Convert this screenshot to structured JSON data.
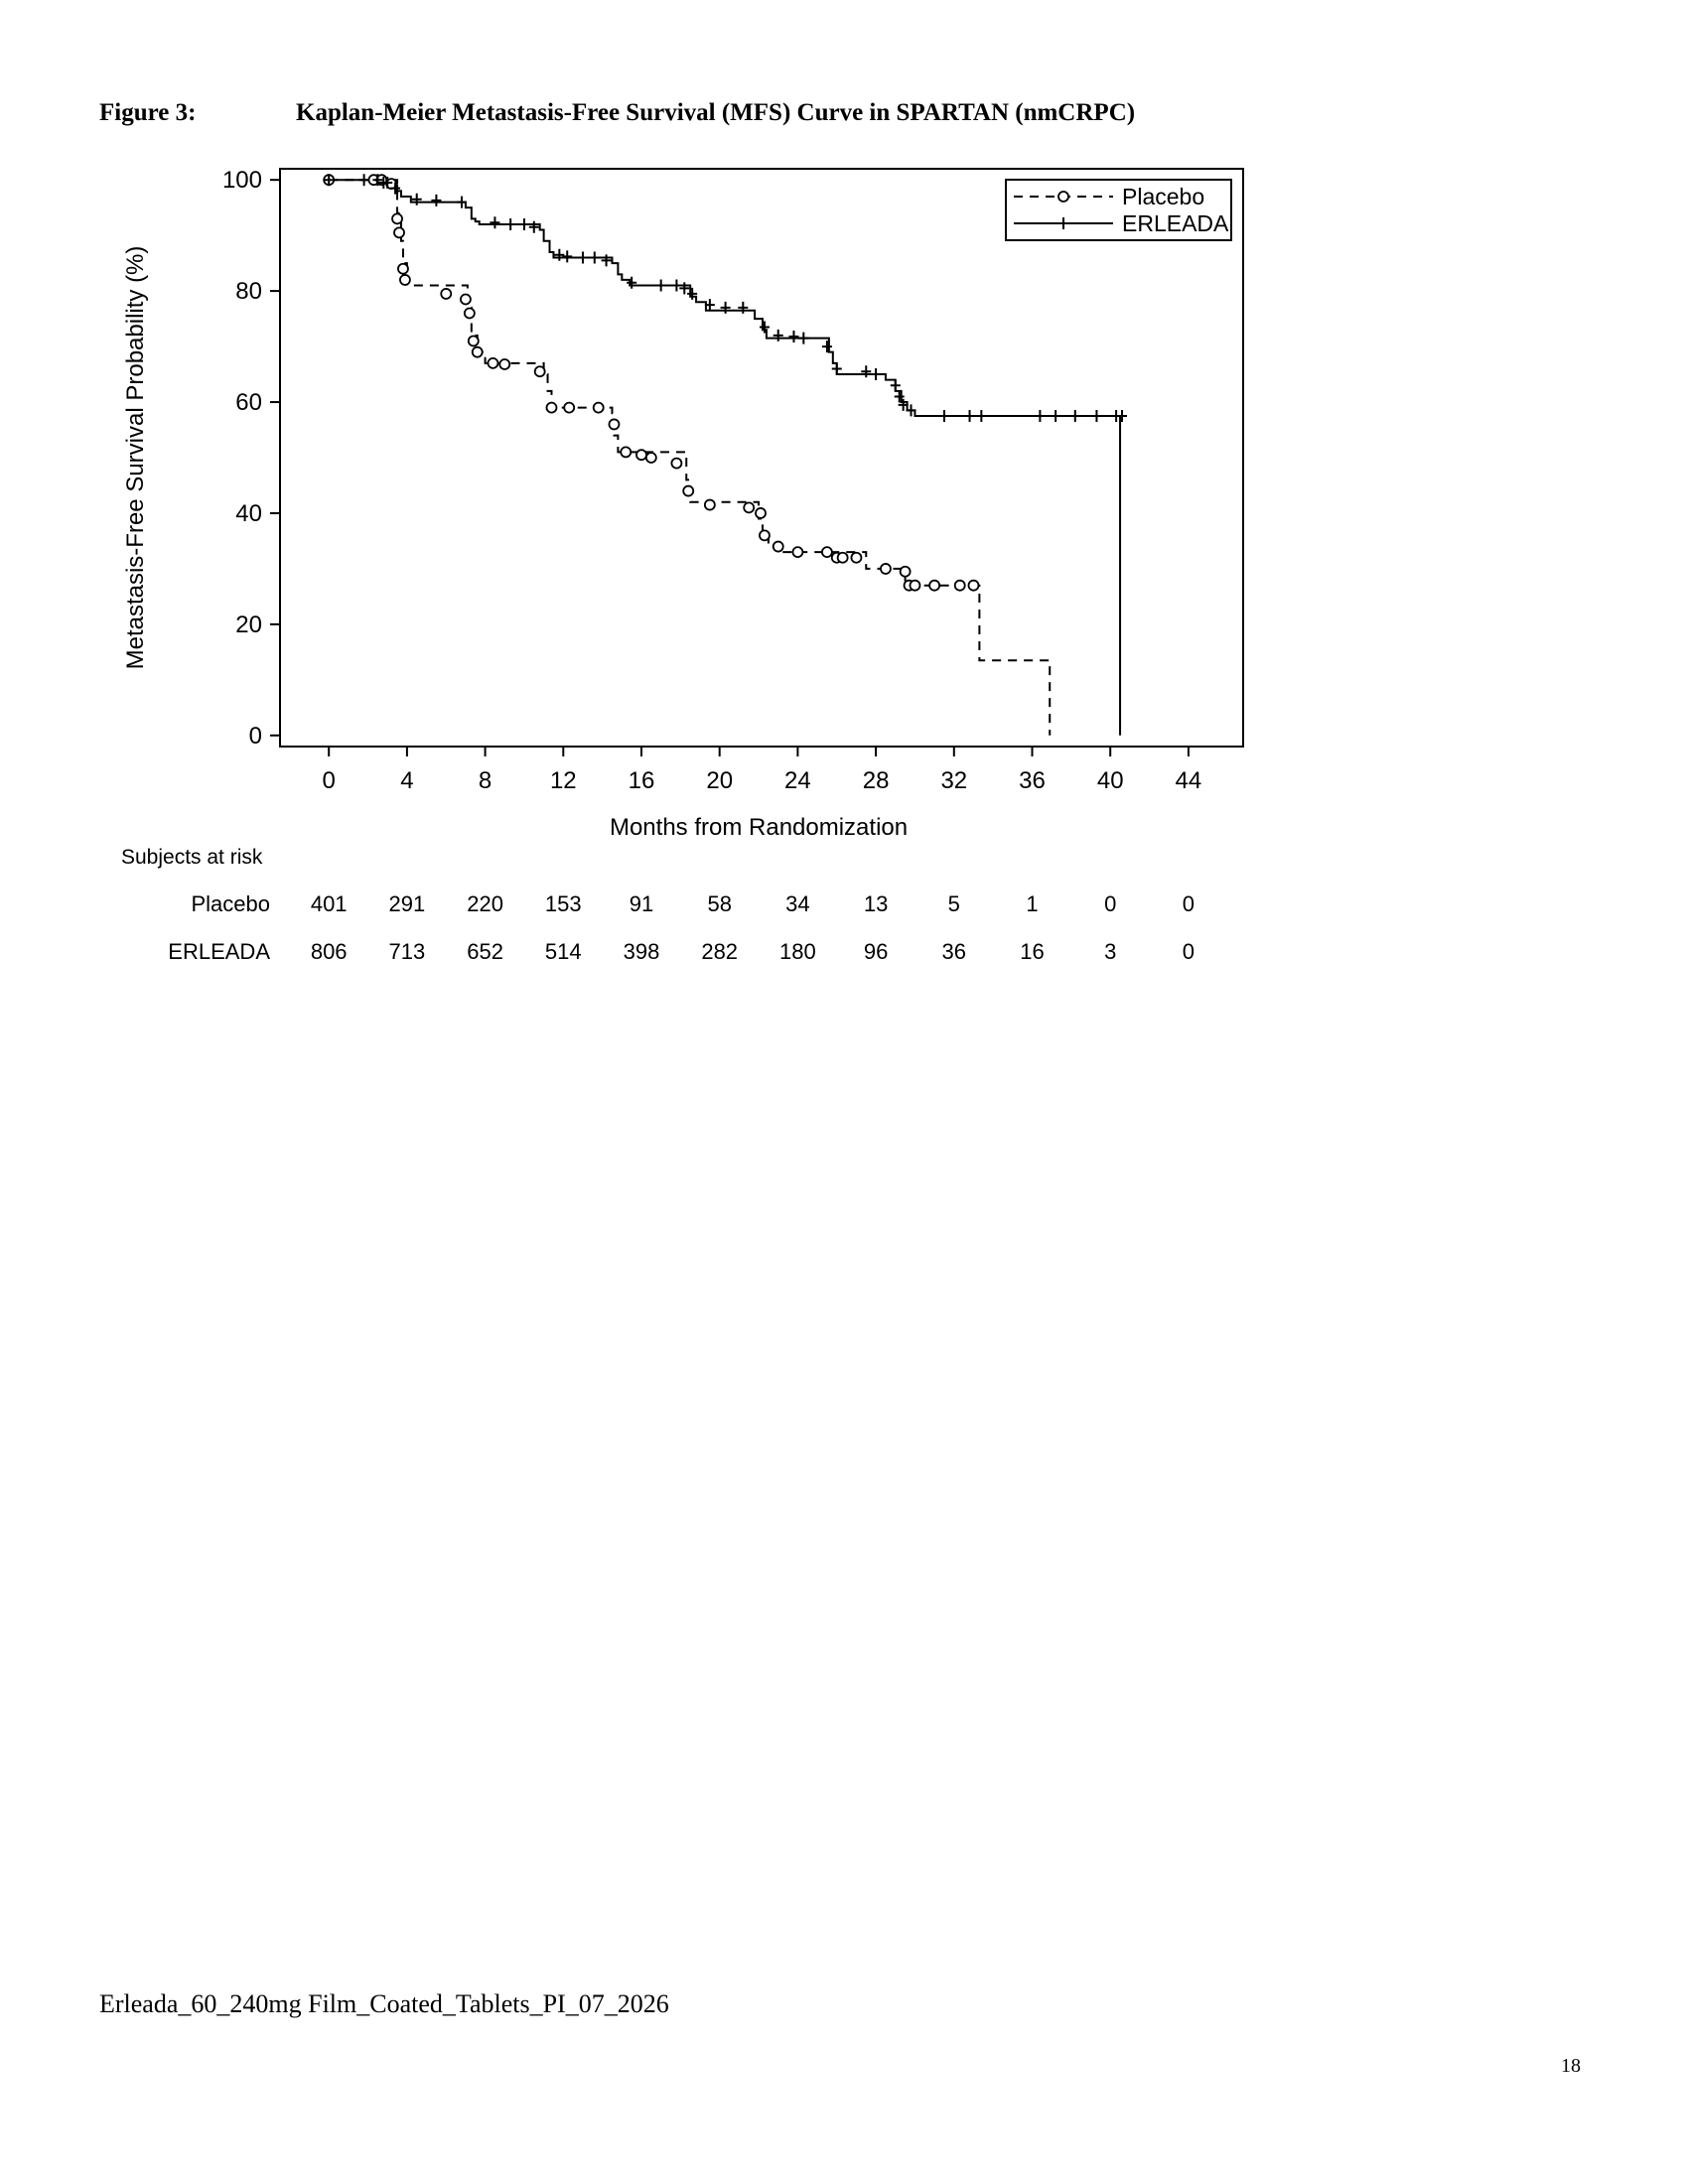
{
  "figure": {
    "label": "Figure 3:",
    "title": "Kaplan-Meier Metastasis-Free Survival (MFS) Curve in SPARTAN (nmCRPC)"
  },
  "chart_data": {
    "type": "line",
    "subtype": "kaplan-meier step survival curve",
    "xlabel": "Months from Randomization",
    "ylabel": "Metastasis-Free Survival Probability (%)",
    "xlim": [
      -2.5,
      46.8
    ],
    "ylim": [
      -2,
      102
    ],
    "xticks": [
      0,
      4,
      8,
      12,
      16,
      20,
      24,
      28,
      32,
      36,
      40,
      44
    ],
    "yticks": [
      0,
      20,
      40,
      60,
      80,
      100
    ],
    "grid": false,
    "legend": {
      "position": "top-right",
      "entries": [
        "Placebo",
        "ERLEADA"
      ]
    },
    "series": [
      {
        "name": "Placebo",
        "line_style": "dashed",
        "censor_marker": "circle",
        "x": [
          0,
          3.5,
          3.7,
          3.8,
          4.0,
          7.1,
          7.3,
          7.6,
          8.0,
          11.0,
          11.2,
          11.4,
          14.5,
          14.6,
          14.8,
          18.3,
          18.5,
          22.0,
          22.2,
          22.5,
          23.0,
          27.5,
          29.5,
          33.3,
          36.9
        ],
        "y": [
          100,
          94,
          89,
          85,
          81,
          77,
          72,
          69,
          67,
          65,
          62,
          59,
          58,
          54,
          51,
          46,
          42,
          39,
          36,
          34,
          33,
          30,
          27,
          13.5,
          0
        ],
        "censored": [
          [
            0,
            100
          ],
          [
            2.3,
            100
          ],
          [
            2.7,
            100
          ],
          [
            3.2,
            99.3
          ],
          [
            3.5,
            93
          ],
          [
            3.6,
            90.5
          ],
          [
            3.8,
            84
          ],
          [
            3.9,
            82
          ],
          [
            6.0,
            79.5
          ],
          [
            7.0,
            78.5
          ],
          [
            7.2,
            76
          ],
          [
            7.4,
            71
          ],
          [
            7.6,
            69
          ],
          [
            8.4,
            67
          ],
          [
            9.0,
            66.8
          ],
          [
            10.8,
            65.5
          ],
          [
            11.4,
            59
          ],
          [
            12.3,
            59
          ],
          [
            13.8,
            59
          ],
          [
            14.6,
            56
          ],
          [
            15.2,
            51
          ],
          [
            16.0,
            50.5
          ],
          [
            16.5,
            50
          ],
          [
            17.8,
            49
          ],
          [
            18.4,
            44
          ],
          [
            19.5,
            41.5
          ],
          [
            21.5,
            41
          ],
          [
            22.1,
            40
          ],
          [
            22.3,
            36
          ],
          [
            23.0,
            34
          ],
          [
            24.0,
            33
          ],
          [
            25.5,
            33
          ],
          [
            26.0,
            32
          ],
          [
            26.3,
            32
          ],
          [
            27.0,
            32
          ],
          [
            28.5,
            30
          ],
          [
            29.5,
            29.5
          ],
          [
            29.7,
            27
          ],
          [
            30.0,
            27
          ],
          [
            31.0,
            27
          ],
          [
            32.3,
            27
          ],
          [
            33.0,
            27
          ]
        ]
      },
      {
        "name": "ERLEADA",
        "line_style": "solid",
        "censor_marker": "plus",
        "x": [
          0,
          3.2,
          3.5,
          3.7,
          4.2,
          7.0,
          7.3,
          7.5,
          7.7,
          10.8,
          11.0,
          11.3,
          11.5,
          14.5,
          14.8,
          15.0,
          15.4,
          18.5,
          18.8,
          19.3,
          21.8,
          22.2,
          22.4,
          25.6,
          25.8,
          26.0,
          28.5,
          29.0,
          29.3,
          29.6,
          30.0,
          40.5
        ],
        "y": [
          100,
          99,
          98,
          97,
          96,
          95,
          93,
          92.5,
          92,
          91,
          89,
          87,
          86,
          85,
          83,
          82,
          81,
          79,
          78,
          76.5,
          75,
          73,
          71.5,
          69,
          67,
          65,
          64,
          62,
          60,
          58.5,
          57.5,
          0
        ],
        "censored": [
          [
            0,
            100
          ],
          [
            1.8,
            100
          ],
          [
            2.5,
            100
          ],
          [
            2.8,
            99.5
          ],
          [
            3.0,
            99.5
          ],
          [
            3.4,
            98.5
          ],
          [
            4.5,
            96.5
          ],
          [
            5.5,
            96.3
          ],
          [
            6.8,
            96
          ],
          [
            8.5,
            92.3
          ],
          [
            9.3,
            92
          ],
          [
            10.0,
            92
          ],
          [
            10.5,
            91.5
          ],
          [
            11.8,
            86.5
          ],
          [
            12.2,
            86.2
          ],
          [
            13.0,
            86
          ],
          [
            13.6,
            86
          ],
          [
            14.2,
            85.5
          ],
          [
            15.5,
            81.5
          ],
          [
            17.0,
            81
          ],
          [
            17.8,
            81
          ],
          [
            18.2,
            80.5
          ],
          [
            18.6,
            79.5
          ],
          [
            19.5,
            77.5
          ],
          [
            20.3,
            77
          ],
          [
            21.2,
            77
          ],
          [
            22.3,
            73.5
          ],
          [
            23.0,
            72
          ],
          [
            23.8,
            71.8
          ],
          [
            24.3,
            71.5
          ],
          [
            25.5,
            70
          ],
          [
            26.0,
            66
          ],
          [
            27.5,
            65.5
          ],
          [
            28.0,
            65
          ],
          [
            29.0,
            63
          ],
          [
            29.2,
            61
          ],
          [
            29.4,
            59.5
          ],
          [
            29.8,
            58.5
          ],
          [
            31.5,
            57.5
          ],
          [
            32.8,
            57.5
          ],
          [
            33.4,
            57.5
          ],
          [
            36.4,
            57.5
          ],
          [
            37.2,
            57.5
          ],
          [
            38.2,
            57.5
          ],
          [
            39.3,
            57.5
          ],
          [
            40.3,
            57.5
          ],
          [
            40.6,
            57.5
          ]
        ]
      }
    ],
    "risk_table": {
      "title": "Subjects at risk",
      "times": [
        0,
        4,
        8,
        12,
        16,
        20,
        24,
        28,
        32,
        36,
        40,
        44
      ],
      "rows": [
        {
          "label": "Placebo",
          "counts": [
            "401",
            "291",
            "220",
            "153",
            "91",
            "58",
            "34",
            "13",
            "5",
            "1",
            "0",
            "0"
          ]
        },
        {
          "label": "ERLEADA",
          "counts": [
            "806",
            "713",
            "652",
            "514",
            "398",
            "282",
            "180",
            "96",
            "36",
            "16",
            "3",
            "0"
          ]
        }
      ]
    }
  },
  "footer": {
    "document_name": "Erleada_60_240mg Film_Coated_Tablets_PI_07_2026",
    "page_number": "18"
  }
}
